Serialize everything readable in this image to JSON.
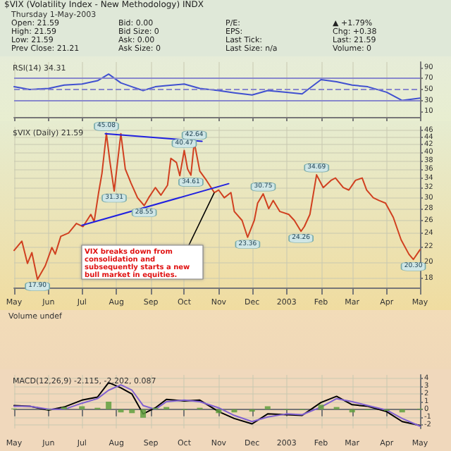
{
  "chart_data": [
    {
      "type": "other",
      "title": "$VIX (Volatility Index - New Methodology) INDX",
      "subtitle": "Thursday 1-May-2003",
      "annotations": [
        "Open: 21.59",
        "High: 21.59",
        "Low: 21.59",
        "Prev Close: 21.21",
        "Bid: 0.00",
        "Bid Size: 0",
        "Ask: 0.00",
        "Ask Size: 0",
        "P/E:",
        "EPS:",
        "Last Tick:",
        "Last Size: n/a",
        "▲ +1.79%",
        "Chg: +0.38",
        "Last: 21.59",
        "Volume: 0"
      ]
    },
    {
      "type": "line",
      "title": "RSI(14) 34.31",
      "x": [
        "2002-05-01",
        "2002-05-15",
        "2002-06-01",
        "2002-06-15",
        "2002-07-01",
        "2002-07-15",
        "2002-07-25",
        "2002-08-05",
        "2002-08-15",
        "2002-08-25",
        "2002-09-05",
        "2002-09-15",
        "2002-10-01",
        "2002-10-15",
        "2002-11-01",
        "2002-11-15",
        "2002-12-01",
        "2002-12-15",
        "2003-01-01",
        "2003-01-15",
        "2003-02-01",
        "2003-02-15",
        "2003-03-01",
        "2003-03-15",
        "2003-04-01",
        "2003-04-15",
        "2003-05-01"
      ],
      "series": [
        {
          "color": "#4050d0",
          "values": [
            55,
            50,
            52,
            58,
            60,
            66,
            78,
            62,
            55,
            48,
            55,
            57,
            60,
            52,
            48,
            44,
            40,
            48,
            45,
            42,
            68,
            64,
            58,
            55,
            45,
            30,
            34.31
          ]
        }
      ],
      "xlim": [
        "2002-05-01",
        "2003-05-01"
      ],
      "xticks": [
        {
          "value": "2002-05-01",
          "label": null
        },
        {
          "value": "2002-06-01",
          "label": null
        },
        {
          "value": "2002-07-01",
          "label": null
        },
        {
          "value": "2002-08-01",
          "label": null
        },
        {
          "value": "2002-09-01",
          "label": null
        },
        {
          "value": "2002-10-01",
          "label": null
        },
        {
          "value": "2002-11-01",
          "label": null
        },
        {
          "value": "2002-12-01",
          "label": null
        },
        {
          "value": "2003-01-01",
          "label": null
        },
        {
          "value": "2003-02-01",
          "label": null
        },
        {
          "value": "2003-03-01",
          "label": null
        },
        {
          "value": "2003-04-01",
          "label": null
        },
        {
          "value": "2003-05-01",
          "label": null
        }
      ],
      "ylim": [
        0,
        100
      ],
      "yticks": [
        10,
        30,
        50,
        70,
        90
      ],
      "tick_labels": "y",
      "grid": "x",
      "marker": "none",
      "ref_lines": [
        {
          "axis": "y",
          "value": 70,
          "color": "#8888cc"
        },
        {
          "axis": "y",
          "value": 50,
          "color": "#8888cc",
          "line_style": "dashed"
        },
        {
          "axis": "y",
          "value": 30,
          "color": "#8888cc"
        }
      ]
    },
    {
      "type": "line",
      "title": "$VIX (Daily) 21.59",
      "log": "y",
      "series": [
        {
          "color": "#d04020",
          "x": [
            "2002-05-01",
            "2002-05-08",
            "2002-05-13",
            "2002-05-17",
            "2002-05-22",
            "2002-05-29",
            "2002-06-04",
            "2002-06-07",
            "2002-06-12",
            "2002-06-19",
            "2002-06-26",
            "2002-07-02",
            "2002-07-09",
            "2002-07-12",
            "2002-07-16",
            "2002-07-19",
            "2002-07-23",
            "2002-07-26",
            "2002-07-30",
            "2002-08-05",
            "2002-08-09",
            "2002-08-14",
            "2002-08-20",
            "2002-08-26",
            "2002-08-30",
            "2002-09-05",
            "2002-09-10",
            "2002-09-16",
            "2002-09-19",
            "2002-09-24",
            "2002-09-27",
            "2002-10-01",
            "2002-10-04",
            "2002-10-07",
            "2002-10-10",
            "2002-10-15",
            "2002-10-21",
            "2002-10-28",
            "2002-11-01",
            "2002-11-06",
            "2002-11-12",
            "2002-11-15",
            "2002-11-22",
            "2002-11-27",
            "2002-12-03",
            "2002-12-06",
            "2002-12-11",
            "2002-12-16",
            "2002-12-20",
            "2002-12-26",
            "2003-01-03",
            "2003-01-08",
            "2003-01-14",
            "2003-01-17",
            "2003-01-22",
            "2003-01-28",
            "2003-02-03",
            "2003-02-10",
            "2003-02-14",
            "2003-02-21",
            "2003-02-26",
            "2003-03-04",
            "2003-03-10",
            "2003-03-14",
            "2003-03-20",
            "2003-03-25",
            "2003-03-31",
            "2003-04-07",
            "2003-04-14",
            "2003-04-21",
            "2003-04-25",
            "2003-05-01"
          ],
          "values": [
            21.5,
            22.8,
            19.8,
            21.2,
            17.9,
            19.5,
            21.9,
            21.0,
            23.5,
            24.0,
            25.5,
            25.0,
            27.0,
            25.8,
            31.0,
            35.0,
            45.08,
            38.0,
            31.31,
            45.0,
            36.0,
            33.0,
            30.0,
            28.55,
            30.0,
            32.0,
            30.5,
            32.5,
            38.5,
            37.5,
            34.5,
            40.47,
            36.0,
            34.61,
            42.64,
            35.5,
            33.5,
            31.0,
            31.5,
            30.0,
            31.0,
            27.5,
            26.0,
            23.36,
            26.0,
            29.0,
            30.75,
            28.0,
            29.5,
            27.5,
            27.0,
            26.0,
            24.26,
            25.0,
            27.0,
            34.69,
            32.0,
            33.5,
            34.0,
            32.0,
            31.5,
            33.5,
            34.0,
            31.5,
            30.0,
            29.5,
            29.0,
            26.5,
            23.0,
            21.0,
            20.3,
            21.59
          ]
        },
        {
          "type": "line",
          "color": "#2020e0",
          "x": [
            "2002-07-22",
            "2002-10-17"
          ],
          "values": [
            45.0,
            42.9
          ]
        },
        {
          "type": "line",
          "color": "#2020e0",
          "x": [
            "2002-07-01",
            "2002-11-10"
          ],
          "values": [
            25.2,
            32.8
          ]
        }
      ],
      "xlim": [
        "2002-05-01",
        "2003-05-01"
      ],
      "xticks": [
        {
          "value": "2002-05-01",
          "label": "May"
        },
        {
          "value": "2002-06-01",
          "label": "Jun"
        },
        {
          "value": "2002-07-01",
          "label": "Jul"
        },
        {
          "value": "2002-08-01",
          "label": "Aug"
        },
        {
          "value": "2002-09-01",
          "label": "Sep"
        },
        {
          "value": "2002-10-01",
          "label": "Oct"
        },
        {
          "value": "2002-11-01",
          "label": "Nov"
        },
        {
          "value": "2002-12-01",
          "label": "Dec"
        },
        {
          "value": "2003-01-01",
          "label": "2003"
        },
        {
          "value": "2003-02-01",
          "label": "Feb"
        },
        {
          "value": "2003-03-01",
          "label": "Mar"
        },
        {
          "value": "2003-04-01",
          "label": "Apr"
        },
        {
          "value": "2003-05-01",
          "label": "May"
        }
      ],
      "ylim": [
        17,
        47
      ],
      "yticks": [
        18,
        20,
        22,
        24,
        26,
        28,
        30,
        32,
        34,
        36,
        38,
        40,
        42,
        44,
        46
      ],
      "grid": true,
      "marker": "none",
      "annotations": [
        {
          "text": "17.90",
          "x": "2002-05-22",
          "y": 17.9
        },
        {
          "text": "45.08",
          "x": "2002-07-23",
          "y": 45.08
        },
        {
          "text": "31.31",
          "x": "2002-07-30",
          "y": 31.31
        },
        {
          "text": "28.55",
          "x": "2002-08-26",
          "y": 28.55
        },
        {
          "text": "40.47",
          "x": "2002-10-01",
          "y": 40.47
        },
        {
          "text": "34.61",
          "x": "2002-10-07",
          "y": 34.61
        },
        {
          "text": "42.64",
          "x": "2002-10-10",
          "y": 42.64
        },
        {
          "text": "23.36",
          "x": "2002-11-27",
          "y": 23.36
        },
        {
          "text": "30.75",
          "x": "2002-12-11",
          "y": 30.75
        },
        {
          "text": "24.26",
          "x": "2003-01-14",
          "y": 24.26
        },
        {
          "text": "34.69",
          "x": "2003-01-28",
          "y": 34.69
        },
        {
          "text": "20.30",
          "x": "2003-04-25",
          "y": 20.3
        },
        {
          "text": "VIX breaks down from consolidation and subsequently starts a new bull market in equities.",
          "x": "2002-10-28",
          "y": 31.0
        }
      ]
    },
    {
      "type": "other",
      "title": "Volume undef"
    },
    {
      "type": "line",
      "title": "MACD(12,26,9) -2.115, -2.202, 0.087",
      "x": [
        "2002-05-01",
        "2002-05-15",
        "2002-06-01",
        "2002-06-15",
        "2002-07-01",
        "2002-07-15",
        "2002-07-25",
        "2002-08-05",
        "2002-08-15",
        "2002-08-25",
        "2002-09-05",
        "2002-09-15",
        "2002-10-01",
        "2002-10-15",
        "2002-11-01",
        "2002-11-15",
        "2002-12-01",
        "2002-12-15",
        "2003-01-01",
        "2003-01-15",
        "2003-02-01",
        "2003-02-15",
        "2003-03-01",
        "2003-03-15",
        "2003-04-01",
        "2003-04-15",
        "2003-05-01"
      ],
      "series": [
        {
          "type": "bar",
          "color": "#60a040",
          "values": [
            0.1,
            0,
            -0.1,
            0.3,
            0.4,
            0.2,
            1.0,
            -0.4,
            -0.5,
            -1.1,
            0.2,
            0.3,
            -0.1,
            0.2,
            -0.5,
            -0.4,
            -0.3,
            0.4,
            -0.1,
            -0.1,
            0.6,
            0.3,
            -0.4,
            -0.1,
            -0.2,
            -0.4,
            0.087
          ]
        },
        {
          "color": "#000000",
          "values": [
            0.5,
            0.4,
            -0.1,
            0.3,
            1.2,
            1.6,
            3.5,
            2.8,
            2.0,
            -0.6,
            0.2,
            1.3,
            1.1,
            1.2,
            -0.3,
            -1.2,
            -1.9,
            -0.6,
            -0.7,
            -0.8,
            0.9,
            1.7,
            0.6,
            0.4,
            -0.3,
            -1.6,
            -2.115
          ]
        },
        {
          "color": "#8060d0",
          "values": [
            0.4,
            0.4,
            0.0,
            0.0,
            0.8,
            1.4,
            2.5,
            3.2,
            2.5,
            0.5,
            0.0,
            1.0,
            1.2,
            1.0,
            0.2,
            -0.8,
            -1.6,
            -1.0,
            -0.6,
            -0.7,
            0.3,
            1.4,
            1.0,
            0.5,
            -0.1,
            -1.2,
            -2.202
          ]
        }
      ],
      "xlim": [
        "2002-05-01",
        "2003-05-01"
      ],
      "xticks": [
        {
          "value": "2002-05-01",
          "label": "May"
        },
        {
          "value": "2002-06-01",
          "label": "Jun"
        },
        {
          "value": "2002-07-01",
          "label": "Jul"
        },
        {
          "value": "2002-08-01",
          "label": "Aug"
        },
        {
          "value": "2002-09-01",
          "label": "Sep"
        },
        {
          "value": "2002-10-01",
          "label": "Oct"
        },
        {
          "value": "2002-11-01",
          "label": "Nov"
        },
        {
          "value": "2002-12-01",
          "label": "Dec"
        },
        {
          "value": "2003-01-01",
          "label": "2003"
        },
        {
          "value": "2003-02-01",
          "label": "Feb"
        },
        {
          "value": "2003-03-01",
          "label": "Mar"
        },
        {
          "value": "2003-04-01",
          "label": "Apr"
        },
        {
          "value": "2003-05-01",
          "label": "May"
        }
      ],
      "ylim": [
        -2.5,
        4.5
      ],
      "yticks": [
        -2,
        -1,
        0,
        1,
        2,
        3,
        4
      ],
      "grid": true,
      "marker": "none"
    }
  ]
}
